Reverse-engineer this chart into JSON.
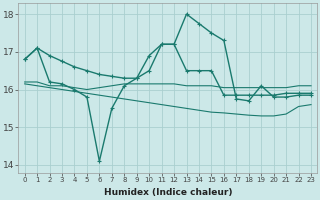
{
  "xlabel": "Humidex (Indice chaleur)",
  "background_color": "#cce8e8",
  "grid_color": "#aacfcf",
  "line_color": "#1a7a6e",
  "xlim": [
    -0.5,
    23.5
  ],
  "ylim": [
    13.8,
    18.3
  ],
  "yticks": [
    14,
    15,
    16,
    17,
    18
  ],
  "xticks": [
    0,
    1,
    2,
    3,
    4,
    5,
    6,
    7,
    8,
    9,
    10,
    11,
    12,
    13,
    14,
    15,
    16,
    17,
    18,
    19,
    20,
    21,
    22,
    23
  ],
  "series": [
    {
      "y": [
        16.8,
        17.1,
        16.9,
        16.75,
        16.6,
        16.5,
        16.4,
        16.35,
        16.3,
        16.3,
        16.5,
        17.2,
        17.2,
        16.5,
        16.5,
        16.5,
        15.85,
        15.85,
        15.85,
        15.85,
        15.85,
        15.9,
        15.9,
        15.9
      ],
      "lw": 1.0,
      "marker": true,
      "ms": 3.5
    },
    {
      "y": [
        16.2,
        16.2,
        16.1,
        16.1,
        16.05,
        16.0,
        16.05,
        16.1,
        16.15,
        16.15,
        16.15,
        16.15,
        16.15,
        16.1,
        16.1,
        16.1,
        16.05,
        16.05,
        16.05,
        16.05,
        16.05,
        16.05,
        16.1,
        16.1
      ],
      "lw": 0.8,
      "marker": false,
      "ms": 0
    },
    {
      "y": [
        16.15,
        16.1,
        16.05,
        16.0,
        15.95,
        15.9,
        15.85,
        15.8,
        15.75,
        15.7,
        15.65,
        15.6,
        15.55,
        15.5,
        15.45,
        15.4,
        15.38,
        15.35,
        15.32,
        15.3,
        15.3,
        15.35,
        15.55,
        15.6
      ],
      "lw": 0.8,
      "marker": false,
      "ms": 0
    },
    {
      "y": [
        16.8,
        17.1,
        16.2,
        16.15,
        16.0,
        15.8,
        14.1,
        15.5,
        16.1,
        16.3,
        16.9,
        17.2,
        17.2,
        18.0,
        17.75,
        17.5,
        17.3,
        15.75,
        15.7,
        16.1,
        15.8,
        15.8,
        15.85,
        15.85
      ],
      "lw": 1.0,
      "marker": true,
      "ms": 3.5
    }
  ]
}
